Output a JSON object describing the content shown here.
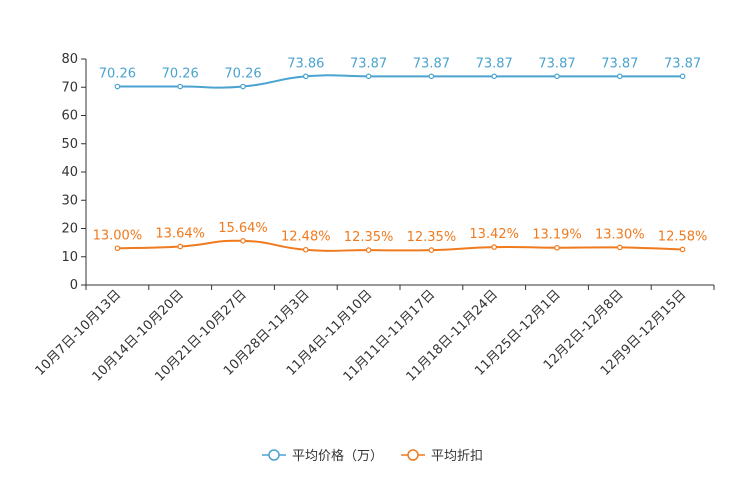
{
  "chart_data": {
    "type": "line",
    "title": "",
    "xlabel": "",
    "ylabel": "",
    "ylim": [
      0,
      80
    ],
    "yticks": [
      0,
      10,
      20,
      30,
      40,
      50,
      60,
      70,
      80
    ],
    "grid": false,
    "legend_position": "bottom-center",
    "categories": [
      "10月7日-10月13日",
      "10月14日-10月20日",
      "10月21日-10月27日",
      "10月28日-11月3日",
      "11月4日-11月10日",
      "11月11日-11月17日",
      "11月18日-11月24日",
      "11月25日-12月1日",
      "12月2日-12月8日",
      "12月9日-12月15日"
    ],
    "series": [
      {
        "name": "平均价格（万）",
        "color": "#4aa3d0",
        "values": [
          70.26,
          70.26,
          70.26,
          73.86,
          73.87,
          73.87,
          73.87,
          73.87,
          73.87,
          73.87
        ],
        "labels": [
          "70.26",
          "70.26",
          "70.26",
          "73.86",
          "73.87",
          "73.87",
          "73.87",
          "73.87",
          "73.87",
          "73.87"
        ]
      },
      {
        "name": "平均折扣",
        "color": "#f07a1e",
        "values": [
          13.0,
          13.64,
          15.64,
          12.48,
          12.35,
          12.35,
          13.42,
          13.19,
          13.3,
          12.58
        ],
        "labels": [
          "13.00%",
          "13.64%",
          "15.64%",
          "12.48%",
          "12.35%",
          "12.35%",
          "13.42%",
          "13.19%",
          "13.30%",
          "12.58%"
        ]
      }
    ]
  }
}
